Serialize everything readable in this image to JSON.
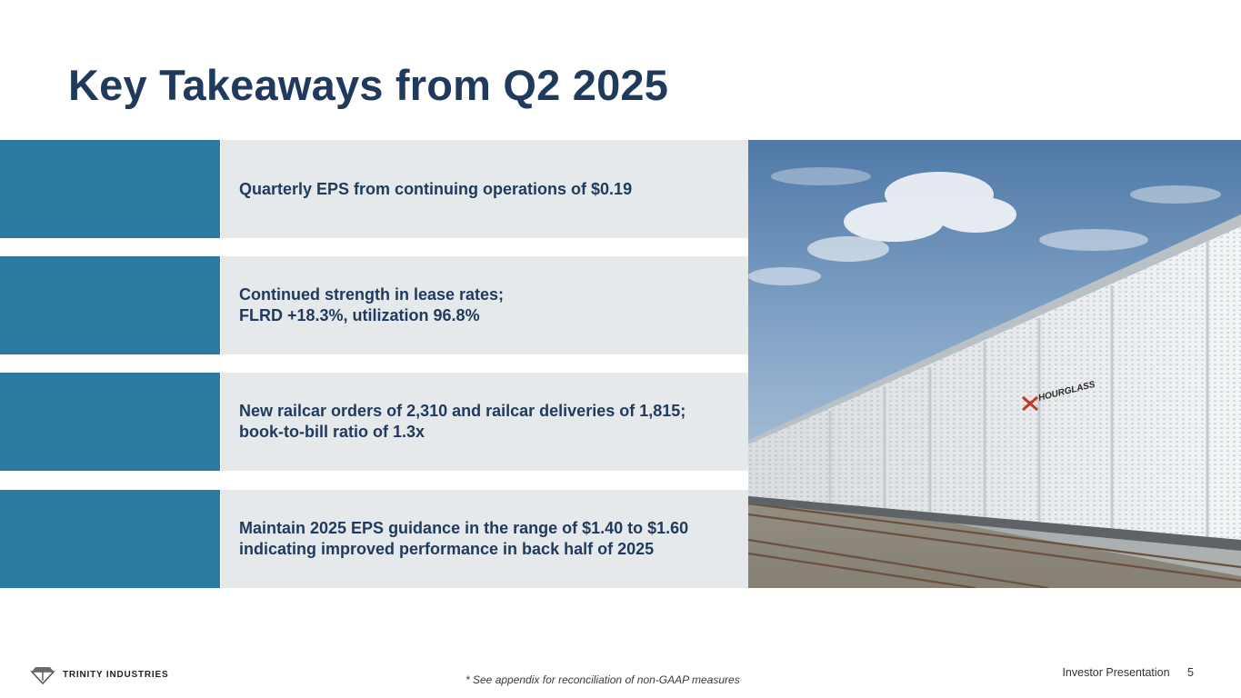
{
  "slide": {
    "title": "Key Takeaways from Q2 2025"
  },
  "takeaways": [
    {
      "lines": [
        "Quarterly EPS from continuing operations of $0.19"
      ]
    },
    {
      "lines": [
        "Continued strength in lease rates;",
        "FLRD +18.3%, utilization 96.8%"
      ]
    },
    {
      "lines": [
        "New railcar orders of 2,310 and railcar deliveries of 1,815;",
        "book-to-bill ratio of 1.3x"
      ]
    },
    {
      "lines": [
        "Maintain 2025 EPS guidance in the range of $1.40 to $1.60",
        "indicating improved performance in back half of 2025"
      ]
    }
  ],
  "photo": {
    "railcar_brand": "HOURGLASS"
  },
  "footer": {
    "logo_text": "TRINITY INDUSTRIES",
    "footnote": "* See appendix for reconciliation of non-GAAP measures",
    "label": "Investor Presentation",
    "page_number": "5"
  },
  "colors": {
    "title": "#1f3a5c",
    "accent": "#2b7aa0",
    "panel": "#e5e9ec"
  }
}
